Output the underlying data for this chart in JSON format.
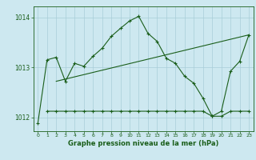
{
  "line1_x": [
    0,
    1,
    2,
    3,
    4,
    5,
    6,
    7,
    8,
    9,
    10,
    11,
    12,
    13,
    14,
    15,
    16,
    17,
    18,
    19,
    20,
    21,
    22,
    23
  ],
  "line1_y": [
    1011.88,
    1013.15,
    1013.2,
    1012.72,
    1013.08,
    1013.02,
    1013.22,
    1013.38,
    1013.62,
    1013.78,
    1013.93,
    1014.02,
    1013.68,
    1013.52,
    1013.18,
    1013.08,
    1012.82,
    1012.68,
    1012.38,
    1012.02,
    1012.12,
    1012.92,
    1013.12,
    1013.65
  ],
  "line2_x": [
    1,
    2,
    3,
    4,
    5,
    6,
    7,
    8,
    9,
    10,
    11,
    12,
    13,
    14,
    15,
    16,
    17,
    18,
    19,
    20,
    21,
    22,
    23
  ],
  "line2_y": [
    1012.12,
    1012.12,
    1012.12,
    1012.12,
    1012.12,
    1012.12,
    1012.12,
    1012.12,
    1012.12,
    1012.12,
    1012.12,
    1012.12,
    1012.12,
    1012.12,
    1012.12,
    1012.12,
    1012.12,
    1012.12,
    1012.02,
    1012.02,
    1012.12,
    1012.12,
    1012.12
  ],
  "line3_x": [
    2,
    23
  ],
  "line3_y": [
    1012.72,
    1013.65
  ],
  "bg_color": "#cde8f0",
  "grid_color": "#a8cdd8",
  "line_color": "#1a5e1a",
  "ylabel_values": [
    1012,
    1013,
    1014
  ],
  "xlabel_values": [
    0,
    1,
    2,
    3,
    4,
    5,
    6,
    7,
    8,
    9,
    10,
    11,
    12,
    13,
    14,
    15,
    16,
    17,
    18,
    19,
    20,
    21,
    22,
    23
  ],
  "xlabel": "Graphe pression niveau de la mer (hPa)",
  "xlim": [
    -0.5,
    23.5
  ],
  "ylim": [
    1011.72,
    1014.22
  ]
}
